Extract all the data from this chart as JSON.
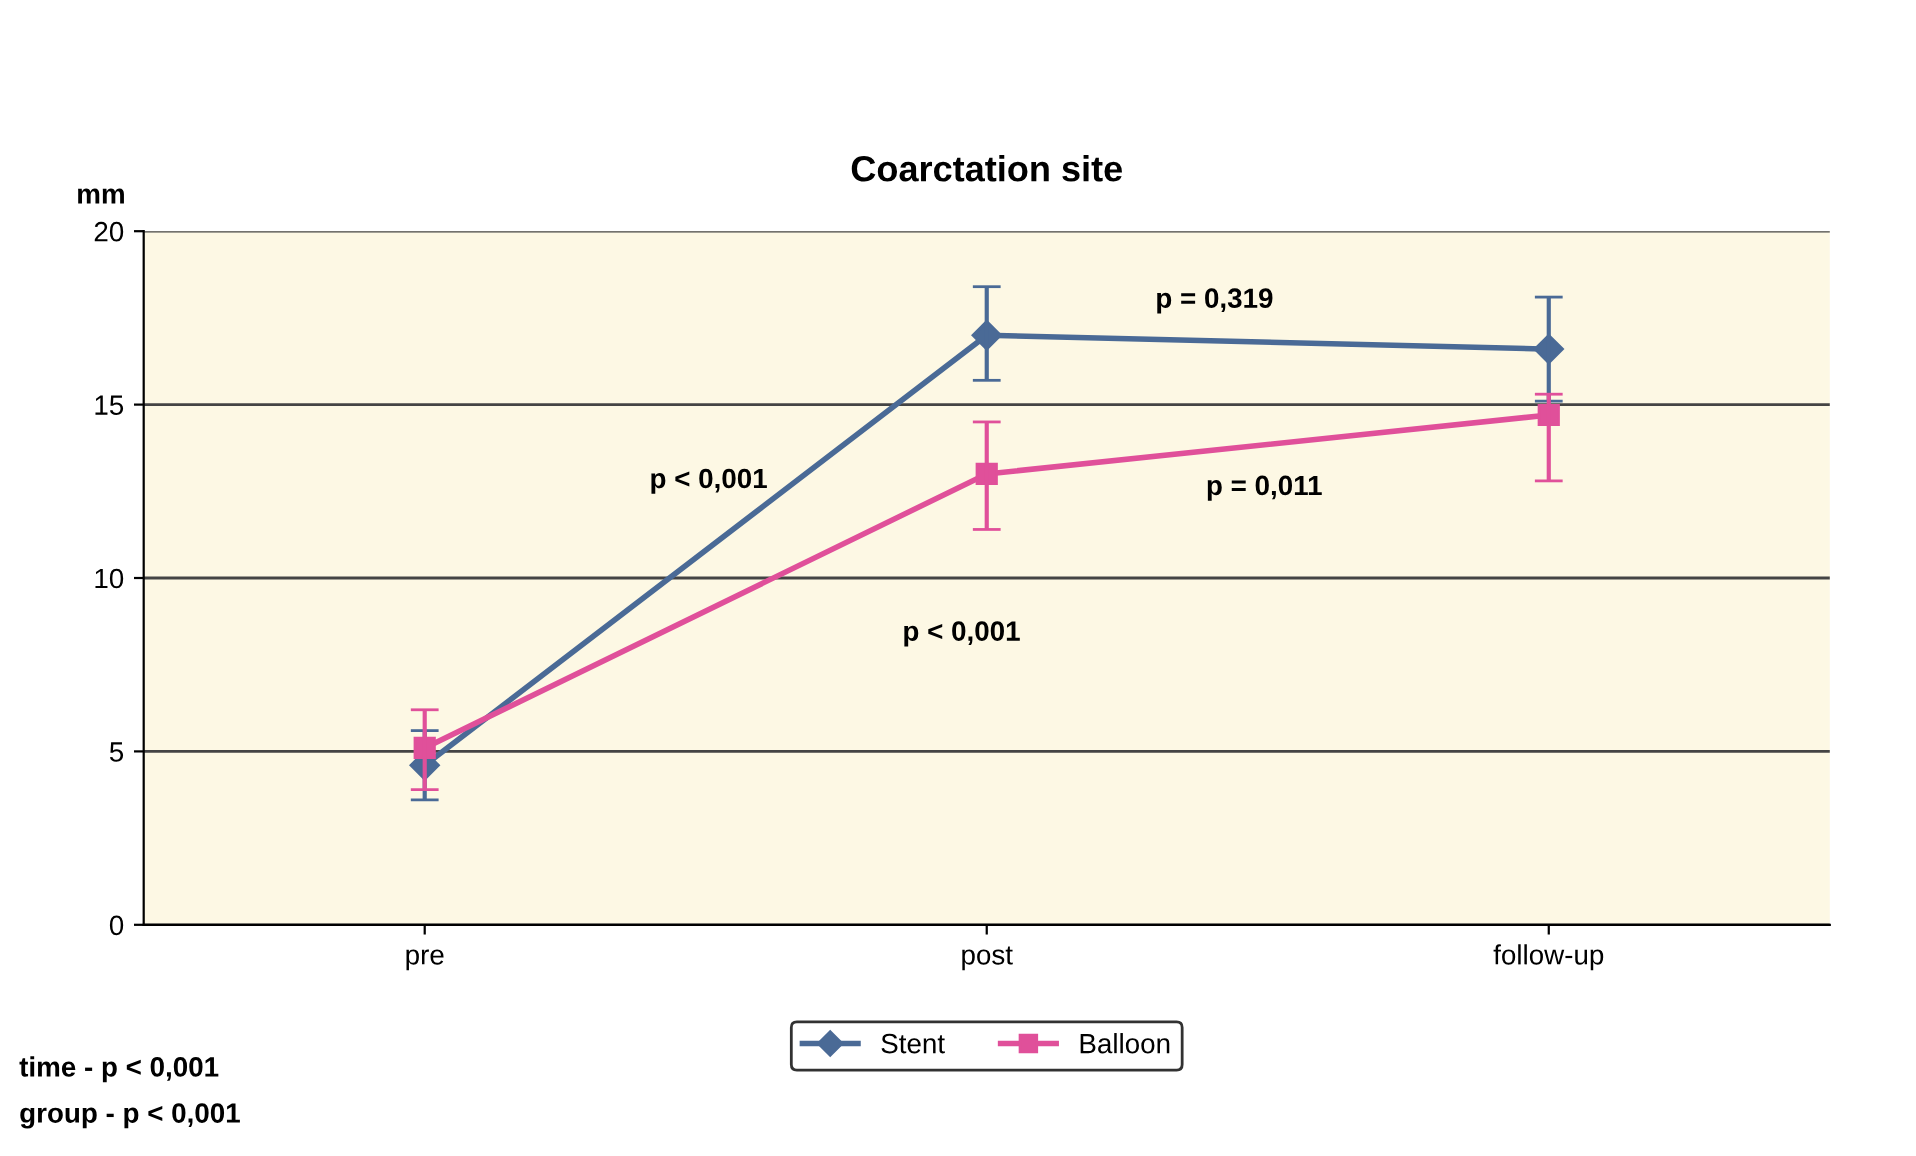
{
  "chart_data": {
    "type": "line",
    "title": "Coarctation site",
    "ylabel": "mm",
    "categories": [
      "pre",
      "post",
      "follow-up"
    ],
    "series": [
      {
        "name": "Stent",
        "color": "#4a6a96",
        "marker": "diamond",
        "values": [
          4.6,
          17.0,
          16.6
        ],
        "errors": [
          [
            3.6,
            5.6
          ],
          [
            15.7,
            18.4
          ],
          [
            15.1,
            18.1
          ]
        ]
      },
      {
        "name": "Balloon",
        "color": "#e0509a",
        "marker": "square",
        "values": [
          5.1,
          13.0,
          14.7
        ],
        "errors": [
          [
            3.9,
            6.2
          ],
          [
            11.4,
            14.5
          ],
          [
            12.8,
            15.3
          ]
        ]
      }
    ],
    "ylim": [
      0,
      20
    ],
    "yticks": [
      0,
      5,
      10,
      15,
      20
    ],
    "grid": "y",
    "legend": "bottom",
    "annotations": [
      "p < 0,001",
      "p < 0,001",
      "p = 0,319",
      "p = 0,011",
      "time - p < 0,001",
      "group - p < 0,001"
    ]
  }
}
